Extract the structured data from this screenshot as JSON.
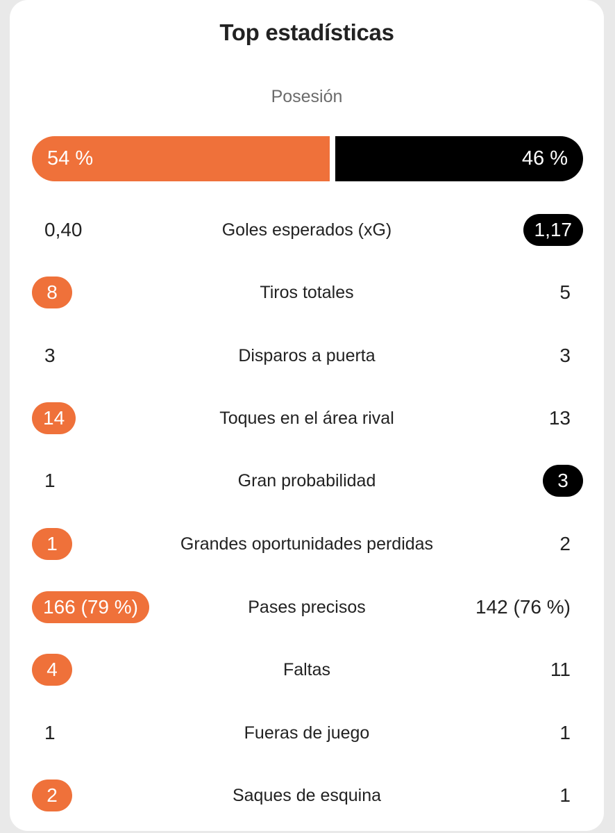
{
  "title": "Top estadísticas",
  "possession": {
    "label": "Posesión",
    "home": "54 %",
    "away": "46 %",
    "home_fraction": 0.54
  },
  "colors": {
    "home_accent": "#ef713a",
    "away_accent": "#000000"
  },
  "stats": [
    {
      "label": "Goles esperados (xG)",
      "home": "0,40",
      "away": "1,17",
      "highlight": "away"
    },
    {
      "label": "Tiros totales",
      "home": "8",
      "away": "5",
      "highlight": "home"
    },
    {
      "label": "Disparos a puerta",
      "home": "3",
      "away": "3",
      "highlight": "none"
    },
    {
      "label": "Toques en el área rival",
      "home": "14",
      "away": "13",
      "highlight": "home"
    },
    {
      "label": "Gran probabilidad",
      "home": "1",
      "away": "3",
      "highlight": "away"
    },
    {
      "label": "Grandes oportunidades perdidas",
      "home": "1",
      "away": "2",
      "highlight": "home"
    },
    {
      "label": "Pases precisos",
      "home": "166 (79 %)",
      "away": "142 (76 %)",
      "highlight": "home"
    },
    {
      "label": "Faltas",
      "home": "4",
      "away": "11",
      "highlight": "home"
    },
    {
      "label": "Fueras de juego",
      "home": "1",
      "away": "1",
      "highlight": "none"
    },
    {
      "label": "Saques de esquina",
      "home": "2",
      "away": "1",
      "highlight": "home"
    }
  ]
}
